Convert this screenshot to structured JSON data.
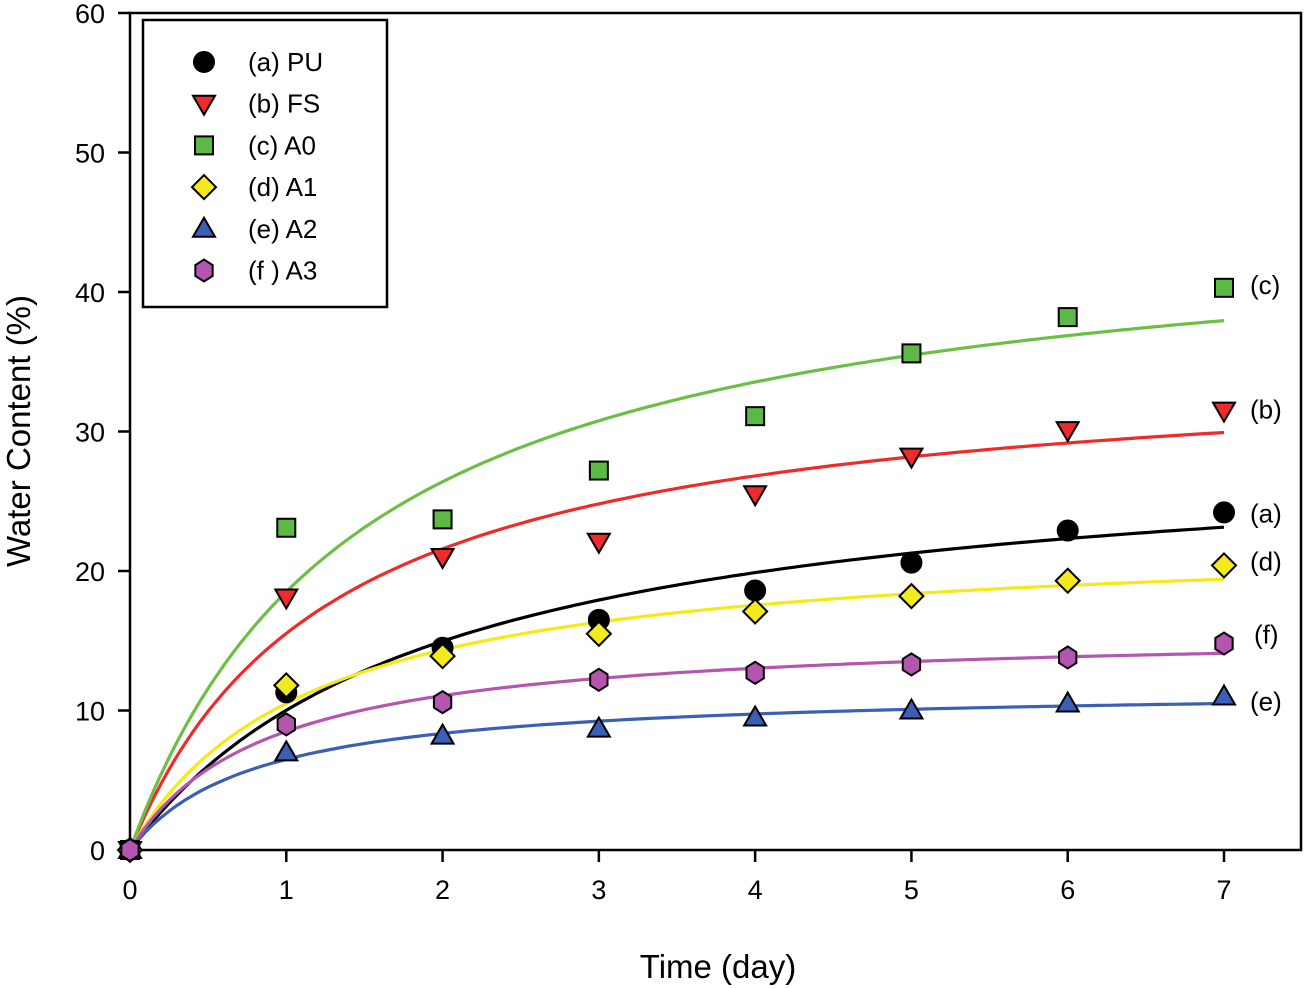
{
  "chart_data": {
    "type": "scatter",
    "title": "",
    "xlabel": "Time (day)",
    "ylabel": "Water Content (%)",
    "xlim": [
      0,
      7
    ],
    "ylim": [
      0,
      60
    ],
    "x_ticks": [
      0,
      1,
      2,
      3,
      4,
      5,
      6,
      7
    ],
    "y_ticks": [
      0,
      10,
      20,
      30,
      40,
      50,
      60
    ],
    "grid": false,
    "legend_position": "top-left",
    "x": [
      0,
      1,
      2,
      3,
      4,
      5,
      6,
      7
    ],
    "series": [
      {
        "key": "a",
        "name": "(a) PU",
        "end_label": "(a)",
        "marker": "circle",
        "color": "#000000",
        "line_color": "#000000",
        "values": [
          0,
          11.3,
          14.5,
          16.5,
          18.6,
          20.6,
          22.9,
          24.2
        ],
        "fit": {
          "model": "y = Ymax*x/(K+x)",
          "Ymax": 29.6,
          "K": 1.955
        }
      },
      {
        "key": "b",
        "name": "(b) FS",
        "end_label": "(b)",
        "marker": "triangle-down",
        "color": "#ee2a2a",
        "line_color": "#ee2a2a",
        "values": [
          0,
          18.1,
          21.0,
          22.1,
          25.5,
          28.2,
          30.1,
          31.5
        ],
        "fit": {
          "model": "y = Ymax*x/(K+x)",
          "Ymax": 35.4,
          "K": 1.28
        }
      },
      {
        "key": "c",
        "name": "(c) A0",
        "end_label": "(c)",
        "marker": "square",
        "color": "#5cb946",
        "line_color": "#6cbf44",
        "values": [
          0,
          23.1,
          23.7,
          27.2,
          31.1,
          35.6,
          38.2,
          40.3
        ],
        "fit": {
          "model": "y = Ymax*x/(K+x)",
          "Ymax": 46.0,
          "K": 1.485
        }
      },
      {
        "key": "d",
        "name": "(d) A1",
        "end_label": "(d)",
        "marker": "diamond",
        "color": "#f2ea1c",
        "line_color": "#f5ea14",
        "values": [
          0,
          11.8,
          13.9,
          15.5,
          17.1,
          18.2,
          19.3,
          20.4
        ],
        "fit": {
          "model": "y = Ymax*x/(K+x)",
          "Ymax": 22.6,
          "K": 1.15
        }
      },
      {
        "key": "e",
        "name": "(e) A2",
        "end_label": "(e)",
        "marker": "triangle-up",
        "color": "#3a5fb5",
        "line_color": "#3a5fb5",
        "values": [
          0,
          7.0,
          8.2,
          8.7,
          9.5,
          10.0,
          10.5,
          11.0
        ],
        "fit": {
          "model": "y = Ymax*x/(K+x)",
          "Ymax": 11.7,
          "K": 0.8
        }
      },
      {
        "key": "f",
        "name": "(f ) A3",
        "end_label": "(f)",
        "marker": "hexagon",
        "color": "#b455b0",
        "line_color": "#b455b0",
        "values": [
          0,
          9.0,
          10.6,
          12.2,
          12.7,
          13.3,
          13.8,
          14.8
        ],
        "fit": {
          "model": "y = Ymax*x/(K+x)",
          "Ymax": 15.84,
          "K": 0.863
        }
      }
    ]
  }
}
